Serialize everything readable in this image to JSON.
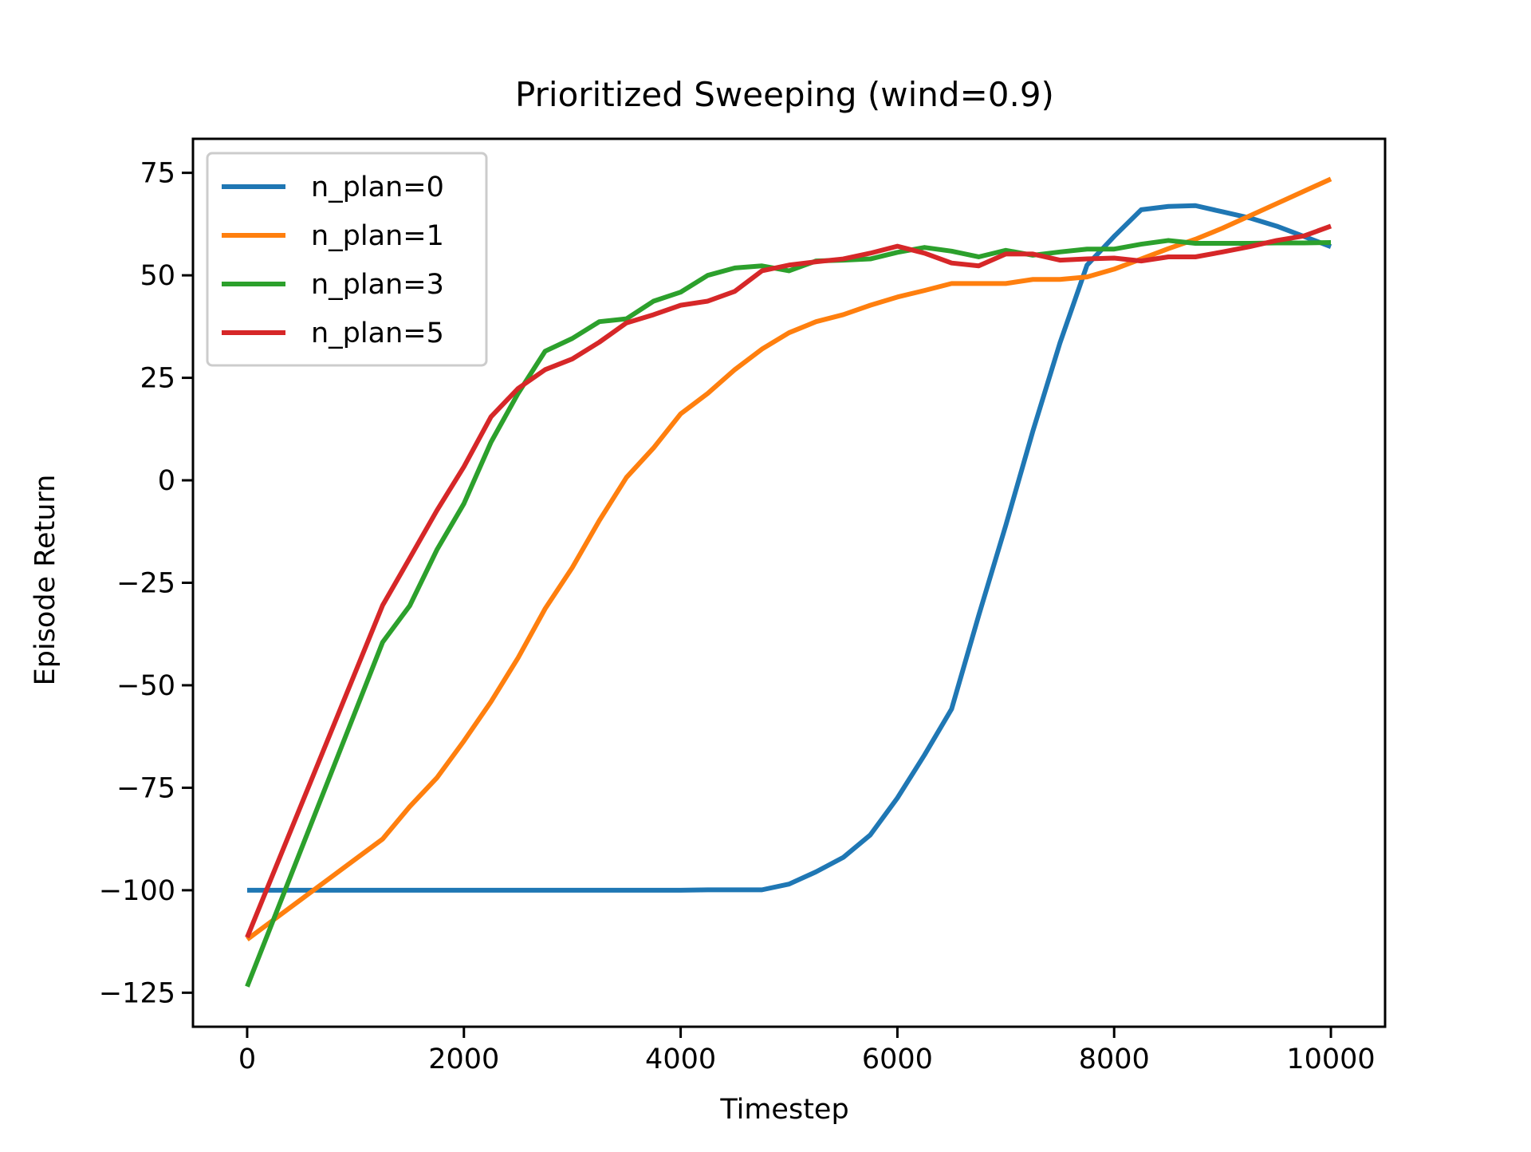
{
  "chart_data": {
    "type": "line",
    "title": "Prioritized Sweeping (wind=0.9)",
    "x_label": "Timestep",
    "y_label": "Episode Return",
    "x": [
      0,
      250,
      500,
      750,
      1000,
      1250,
      1500,
      1750,
      2000,
      2250,
      2500,
      2750,
      3000,
      3250,
      3500,
      3750,
      4000,
      4250,
      4500,
      4750,
      5000,
      5250,
      5500,
      5750,
      6000,
      6250,
      6500,
      6750,
      7000,
      7250,
      7500,
      7750,
      8000,
      8250,
      8500,
      8750,
      9000,
      9250,
      9500,
      9750,
      10000
    ],
    "series": [
      {
        "name": "n_plan=0",
        "color": "#1f77b4",
        "values": [
          -100,
          -100,
          -100,
          -100,
          -100,
          -100,
          -100,
          -100,
          -100,
          -100,
          -100,
          -100,
          -100,
          -100,
          -100,
          -100,
          -100,
          -99.9,
          -99.9,
          -99.9,
          -98.5,
          -95.5,
          -92,
          -86.5,
          -77.5,
          -67,
          -55.8,
          -33,
          -11,
          12,
          33.5,
          52.5,
          59.5,
          66,
          66.8,
          67,
          65.5,
          64,
          62,
          59.5,
          57
        ]
      },
      {
        "name": "n_plan=1",
        "color": "#ff7f0e",
        "values": [
          -112,
          -107.1,
          -102.2,
          -97.3,
          -92.4,
          -87.5,
          -79.6,
          -72.6,
          -63.6,
          -54,
          -43.3,
          -31.3,
          -21.3,
          -9.8,
          0.7,
          7.9,
          16.2,
          21.2,
          27,
          32,
          36,
          38.7,
          40.4,
          42.7,
          44.7,
          46.3,
          48,
          48,
          48,
          49,
          49,
          49.6,
          51.5,
          54,
          56.5,
          58.8,
          61.5,
          64.5,
          67.5,
          70.5,
          73.5
        ]
      },
      {
        "name": "n_plan=3",
        "color": "#2ca02c",
        "values": [
          -123.5,
          -106.7,
          -89.9,
          -73.1,
          -56.3,
          -39.5,
          -30.6,
          -17,
          -5.7,
          9.3,
          21.2,
          31.5,
          34.6,
          38.7,
          39.4,
          43.7,
          45.9,
          50,
          51.8,
          52.3,
          51.1,
          53.5,
          53.7,
          54,
          55.6,
          56.8,
          55.9,
          54.5,
          56.1,
          54.9,
          55.7,
          56.4,
          56.4,
          57.6,
          58.5,
          57.8,
          57.8,
          57.8,
          57.9,
          57.9,
          58
        ]
      },
      {
        "name": "n_plan=5",
        "color": "#d62728",
        "values": [
          -111.5,
          -95.3,
          -79.1,
          -62.9,
          -46.7,
          -30.5,
          -19,
          -7.4,
          3.3,
          15.5,
          22.4,
          27,
          29.6,
          33.7,
          38.4,
          40.4,
          42.7,
          43.7,
          46.1,
          51.1,
          52.5,
          53.3,
          54,
          55.4,
          57.1,
          55.4,
          53,
          52.3,
          55.2,
          55.2,
          53.7,
          54,
          54.2,
          53.5,
          54.5,
          54.5,
          55.7,
          57,
          58.5,
          59.6,
          62
        ]
      }
    ],
    "xlim": [
      -500,
      10500
    ],
    "ylim": [
      -133.3,
      83.3
    ],
    "xticks": [
      0,
      2000,
      4000,
      6000,
      8000,
      10000
    ],
    "yticks": [
      {
        "value": -125,
        "label": "−125"
      },
      {
        "value": -100,
        "label": "−100"
      },
      {
        "value": -75,
        "label": "−75"
      },
      {
        "value": -50,
        "label": "−50"
      },
      {
        "value": -25,
        "label": "−25"
      },
      0,
      25,
      50,
      75
    ],
    "legend": "upper left"
  }
}
